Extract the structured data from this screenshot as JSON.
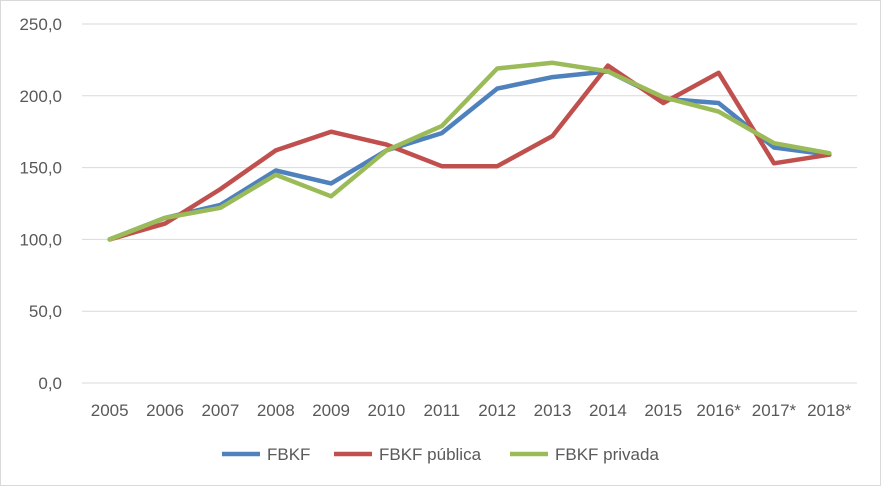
{
  "chart_data": {
    "type": "line",
    "categories": [
      "2005",
      "2006",
      "2007",
      "2008",
      "2009",
      "2010",
      "2011",
      "2012",
      "2013",
      "2014",
      "2015",
      "2016*",
      "2017*",
      "2018*"
    ],
    "ylim": [
      0,
      250
    ],
    "yticks": [
      "0,0",
      "50,0",
      "100,0",
      "150,0",
      "200,0",
      "250,0"
    ],
    "ytick_values": [
      0,
      50,
      100,
      150,
      200,
      250
    ],
    "grid": true,
    "legend_position": "bottom",
    "series": [
      {
        "name": "FBKF",
        "color": "#4f81bd",
        "values": [
          100,
          115,
          124,
          148,
          139,
          162,
          174,
          205,
          213,
          217,
          198,
          195,
          164,
          159
        ]
      },
      {
        "name": "FBKF pública",
        "color": "#c0504d",
        "values": [
          100,
          111,
          135,
          162,
          175,
          166,
          151,
          151,
          172,
          221,
          195,
          216,
          153,
          159
        ]
      },
      {
        "name": "FBKF privada",
        "color": "#9bbb59",
        "values": [
          100,
          115,
          122,
          145,
          130,
          162,
          179,
          219,
          223,
          217,
          199,
          189,
          167,
          160
        ]
      }
    ]
  }
}
